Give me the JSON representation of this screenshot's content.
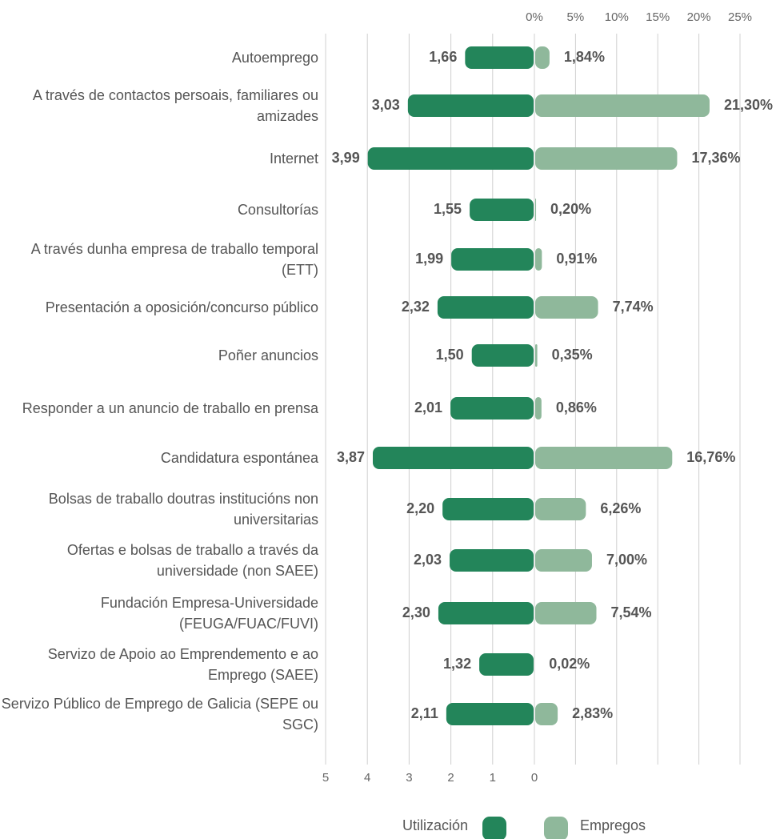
{
  "chart_data": {
    "type": "diverging-bar",
    "categories": [
      "Autoemprego",
      "A través de contactos persoais, familiares ou amizades",
      "Internet",
      "Consultorías",
      "A través dunha empresa de traballo temporal (ETT)",
      "Presentación a oposición/concurso público",
      "Poñer anuncios",
      "Responder a un anuncio de traballo en prensa",
      "Candidatura espontánea",
      "Bolsas de traballo doutras institucións non universitarias",
      "Ofertas e bolsas de traballo a través da universidade (non SAEE)",
      "Fundación Empresa-Universidade (FEUGA/FUAC/FUVI)",
      "Servizo de Apoio ao Emprendemento e ao Emprego (SAEE)",
      "Servizo Público de Emprego de Galicia (SEPE ou SGC)"
    ],
    "series": [
      {
        "name": "Utilización",
        "color": "#23855a",
        "axis": "x",
        "values": [
          1.66,
          3.03,
          3.99,
          1.55,
          1.99,
          2.32,
          1.5,
          2.01,
          3.87,
          2.2,
          2.03,
          2.3,
          1.32,
          2.11
        ],
        "value_labels": [
          "1,66",
          "3,03",
          "3,99",
          "1,55",
          "1,99",
          "2,32",
          "1,50",
          "2,01",
          "3,87",
          "2,20",
          "2,03",
          "2,30",
          "1,32",
          "2,11"
        ]
      },
      {
        "name": "Empregos",
        "color": "#8fb89b",
        "axis": "x2",
        "values": [
          1.84,
          21.3,
          17.36,
          0.2,
          0.91,
          7.74,
          0.35,
          0.86,
          16.76,
          6.26,
          7.0,
          7.54,
          0.02,
          2.83
        ],
        "value_labels": [
          "1,84%",
          "21,30%",
          "17,36%",
          "0,20%",
          "0,91%",
          "7,74%",
          "0,35%",
          "0,86%",
          "16,76%",
          "6,26%",
          "7,00%",
          "7,54%",
          "0,02%",
          "2,83%"
        ]
      }
    ],
    "xlim": [
      5,
      0
    ],
    "xticks": [
      5,
      4,
      3,
      2,
      1,
      0
    ],
    "x2lim": [
      0,
      25
    ],
    "x2ticks": [
      {
        "value": 0,
        "label": "0%"
      },
      {
        "value": 5,
        "label": "5%"
      },
      {
        "value": 10,
        "label": "10%"
      },
      {
        "value": 15,
        "label": "15%"
      },
      {
        "value": 20,
        "label": "20%"
      },
      {
        "value": 25,
        "label": "25%"
      }
    ],
    "grid": true
  }
}
